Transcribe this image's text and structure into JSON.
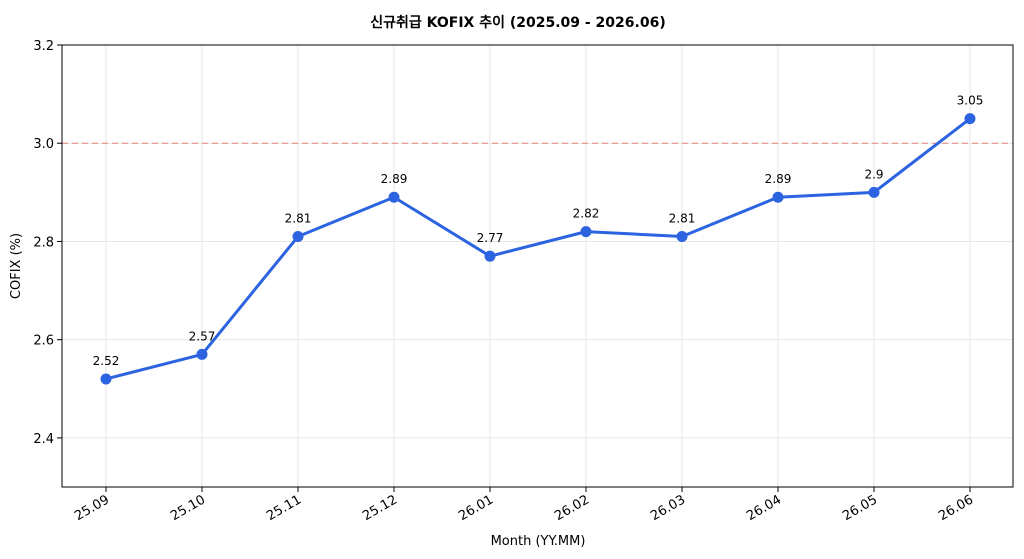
{
  "chart_data": {
    "type": "line",
    "title": "신규취급 KOFIX 추이 (2025.09 - 2026.06)",
    "xlabel": "Month (YY.MM)",
    "ylabel": "COFIX (%)",
    "categories": [
      "25.09",
      "25.10",
      "25.11",
      "25.12",
      "26.01",
      "26.02",
      "26.03",
      "26.04",
      "26.05",
      "26.06"
    ],
    "series": [
      {
        "values": [
          2.52,
          2.57,
          2.81,
          2.89,
          2.77,
          2.82,
          2.81,
          2.89,
          2.9,
          3.05
        ],
        "labels": [
          "2.52",
          "2.57",
          "2.81",
          "2.89",
          "2.77",
          "2.82",
          "2.81",
          "2.89",
          "2.9",
          "3.05"
        ],
        "color": "#2b63e0"
      }
    ],
    "ylim": [
      2.3,
      3.2
    ],
    "yticks": [
      2.4,
      2.6,
      2.8,
      3.0,
      3.2
    ],
    "ytick_labels": [
      "2.4",
      "2.6",
      "2.8",
      "3.0",
      "3.2"
    ],
    "reference_line": {
      "y": 3.0,
      "color": "#e8837a",
      "style": "dashed"
    },
    "grid": true
  }
}
